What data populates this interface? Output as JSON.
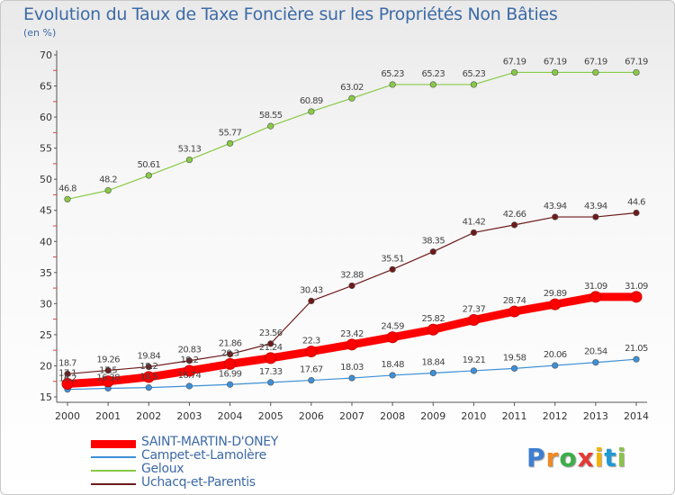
{
  "chart_data": {
    "type": "line",
    "title": "Evolution du Taux de Taxe Foncière sur les Propriétés Non Bâties",
    "unit_label": "(en %)",
    "x": [
      "2000",
      "2001",
      "2002",
      "2003",
      "2004",
      "2005",
      "2006",
      "2007",
      "2008",
      "2009",
      "2010",
      "2011",
      "2012",
      "2013",
      "2014"
    ],
    "ylim": [
      15,
      70
    ],
    "yticks": [
      "15",
      "20",
      "25",
      "30",
      "35",
      "40",
      "45",
      "50",
      "55",
      "60",
      "65",
      "70"
    ],
    "grid": false,
    "legend_position": "bottom-left",
    "series": [
      {
        "name": "SAINT-MARTIN-D'ONEY",
        "color": "#ff0000",
        "values": [
          17.1,
          17.5,
          18.2,
          19.2,
          20.3,
          21.24,
          22.3,
          23.42,
          24.59,
          25.82,
          27.37,
          28.74,
          29.89,
          31.09,
          31.09
        ],
        "labels": [
          "17.1",
          "17.5",
          "18.2",
          "19.2",
          "20.3",
          "21.24",
          "22.3",
          "23.42",
          "24.59",
          "25.82",
          "27.37",
          "28.74",
          "29.89",
          "31.09",
          "31.09"
        ]
      },
      {
        "name": "Campet-et-Lamolère",
        "color": "#3d8fd6",
        "values": [
          16.2,
          16.38,
          16.5,
          16.74,
          16.99,
          17.33,
          17.67,
          18.03,
          18.48,
          18.84,
          19.21,
          19.58,
          20.06,
          20.54,
          21.05
        ],
        "labels": [
          "16.2",
          "16.38",
          "16.5",
          "16.74",
          "16.99",
          "17.33",
          "17.67",
          "18.03",
          "18.48",
          "18.84",
          "19.21",
          "19.58",
          "20.06",
          "20.54",
          "21.05"
        ]
      },
      {
        "name": "Geloux",
        "color": "#88c946",
        "values": [
          46.8,
          48.2,
          50.61,
          53.13,
          55.77,
          58.55,
          60.89,
          63.02,
          65.23,
          65.23,
          65.23,
          67.19,
          67.19,
          67.19,
          67.19
        ],
        "labels": [
          "46.8",
          "48.2",
          "50.61",
          "53.13",
          "55.77",
          "58.55",
          "60.89",
          "63.02",
          "65.23",
          "65.23",
          "65.23",
          "67.19",
          "67.19",
          "67.19",
          "67.19"
        ]
      },
      {
        "name": "Uchacq-et-Parentis",
        "color": "#6e1a1a",
        "values": [
          18.7,
          19.26,
          19.84,
          20.83,
          21.86,
          23.56,
          30.43,
          32.88,
          35.51,
          38.35,
          41.42,
          42.66,
          43.94,
          43.94,
          44.6
        ],
        "labels": [
          "18.7",
          "19.26",
          "19.84",
          "20.83",
          "21.86",
          "23.56",
          "30.43",
          "32.88",
          "35.51",
          "38.35",
          "41.42",
          "42.66",
          "43.94",
          "43.94",
          "44.6"
        ]
      }
    ]
  },
  "logo": {
    "letters": [
      "P",
      "r",
      "o",
      "x",
      "i",
      "t",
      "i"
    ],
    "colors": [
      "#3d7fd1",
      "#f08a24",
      "#3dae49",
      "#e53935",
      "#f5b400",
      "#1e9ad6",
      "#8bc34a"
    ]
  }
}
